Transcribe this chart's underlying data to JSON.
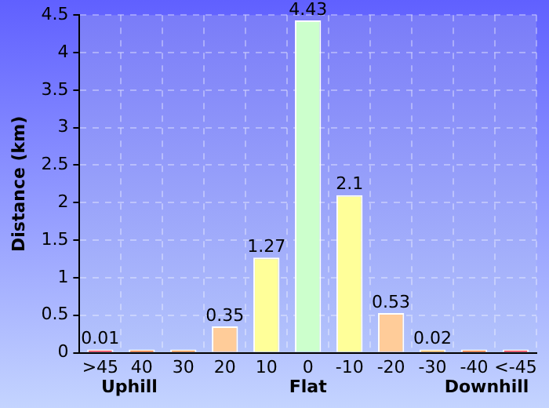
{
  "chart_data": {
    "type": "bar",
    "ylabel": "Distance (km)",
    "categories": [
      ">45",
      "40",
      "30",
      "20",
      "10",
      "0",
      "-10",
      "-20",
      "-30",
      "-40",
      "<-45"
    ],
    "values": [
      0.01,
      0,
      0,
      0.35,
      1.27,
      4.43,
      2.1,
      0.53,
      0.02,
      0,
      0
    ],
    "colors": [
      "#ff2020",
      "#ff6a00",
      "#ff8c1a",
      "#ffcc99",
      "#ffff99",
      "#ccffcc",
      "#ffff99",
      "#ffcc99",
      "#ffb833",
      "#ff6a00",
      "#ff2020"
    ],
    "value_labels": [
      "0.01",
      null,
      null,
      "0.35",
      "1.27",
      "4.43",
      "2.1",
      "0.53",
      "0.02",
      null,
      null
    ],
    "ylim": [
      0,
      4.5
    ],
    "yticks": [
      0,
      0.5,
      1,
      1.5,
      2,
      2.5,
      3,
      3.5,
      4,
      4.5
    ],
    "grid": true,
    "annotations": [
      "Uphill",
      "Flat",
      "Downhill"
    ]
  }
}
